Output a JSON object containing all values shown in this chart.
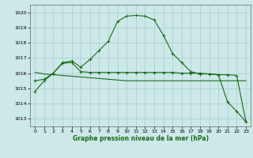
{
  "x": [
    0,
    1,
    2,
    3,
    4,
    5,
    6,
    7,
    8,
    9,
    10,
    11,
    12,
    13,
    14,
    15,
    16,
    17,
    18,
    19,
    20,
    21,
    22,
    23
  ],
  "line1": [
    1014.8,
    1015.5,
    1016.0,
    1016.7,
    1016.8,
    1016.4,
    1016.9,
    1017.5,
    1018.1,
    1019.4,
    1019.75,
    1019.8,
    1019.75,
    1019.5,
    1018.5,
    1017.3,
    1016.7,
    1016.1,
    1015.95,
    1015.95,
    1015.9,
    1014.1,
    1013.5,
    1012.8
  ],
  "line2": [
    1015.5,
    1015.6,
    1016.0,
    1016.65,
    1016.7,
    1016.1,
    1016.05,
    1016.05,
    1016.05,
    1016.05,
    1016.05,
    1016.05,
    1016.05,
    1016.05,
    1016.05,
    1016.05,
    1016.0,
    1016.0,
    1016.0,
    1015.95,
    1015.9,
    1015.9,
    1015.85,
    1012.8
  ],
  "line3": [
    1016.05,
    1015.95,
    1015.9,
    1015.85,
    1015.8,
    1015.75,
    1015.7,
    1015.65,
    1015.6,
    1015.55,
    1015.5,
    1015.5,
    1015.5,
    1015.5,
    1015.5,
    1015.5,
    1015.5,
    1015.5,
    1015.5,
    1015.5,
    1015.5,
    1015.5,
    1015.5,
    1015.5
  ],
  "line_color": "#1a6b1a",
  "bg_color": "#cce8e8",
  "grid_major_color": "#aacccc",
  "grid_minor_color": "#bbdddd",
  "ylabel_values": [
    1013,
    1014,
    1015,
    1016,
    1017,
    1018,
    1019,
    1020
  ],
  "ylim": [
    1012.5,
    1020.5
  ],
  "xlim": [
    -0.5,
    23.5
  ],
  "xlabel": "Graphe pression niveau de la mer (hPa)",
  "marker": "+"
}
